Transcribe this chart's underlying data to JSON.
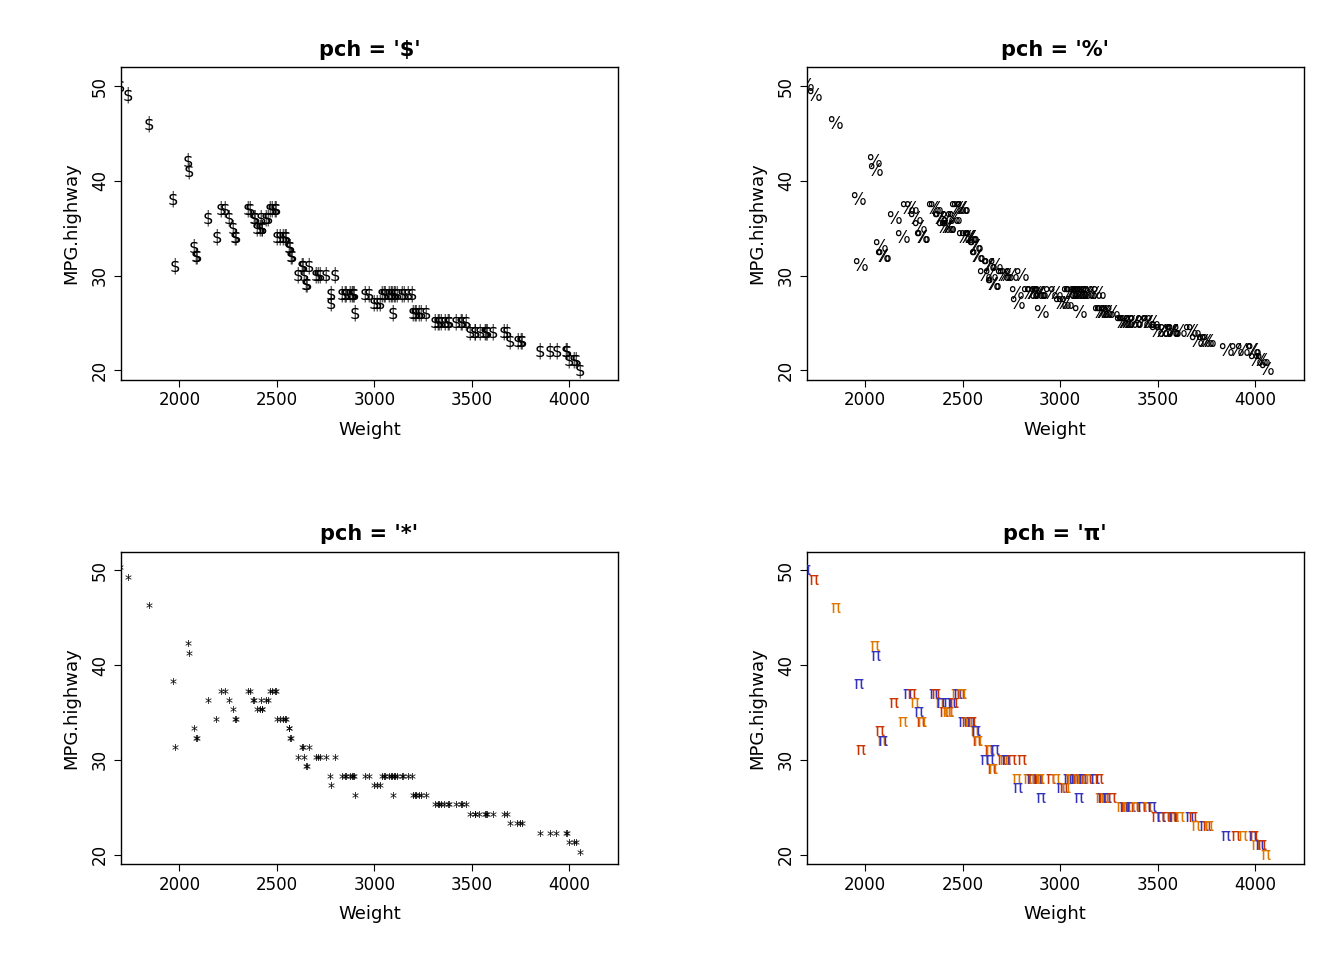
{
  "weight": [
    1695,
    1735,
    1845,
    1965,
    1975,
    2045,
    2050,
    2075,
    2085,
    2090,
    2145,
    2190,
    2215,
    2235,
    2255,
    2275,
    2285,
    2290,
    2350,
    2360,
    2380,
    2385,
    2400,
    2415,
    2420,
    2425,
    2425,
    2445,
    2455,
    2465,
    2475,
    2490,
    2495,
    2500,
    2515,
    2530,
    2540,
    2545,
    2560,
    2565,
    2570,
    2575,
    2610,
    2630,
    2635,
    2640,
    2650,
    2655,
    2665,
    2700,
    2710,
    2720,
    2750,
    2775,
    2780,
    2800,
    2835,
    2850,
    2855,
    2875,
    2885,
    2890,
    2895,
    2900,
    2950,
    2975,
    3000,
    3015,
    3030,
    3040,
    3050,
    3055,
    3075,
    3085,
    3090,
    3095,
    3100,
    3105,
    3115,
    3140,
    3150,
    3175,
    3195,
    3200,
    3210,
    3215,
    3230,
    3240,
    3265,
    3310,
    3325,
    3330,
    3340,
    3360,
    3380,
    3385,
    3420,
    3445,
    3450,
    3470,
    3490,
    3515,
    3515,
    3540,
    3570,
    3575,
    3580,
    3610,
    3665,
    3680,
    3695,
    3735,
    3750,
    3760,
    3850,
    3900,
    3935,
    3985,
    3990,
    4000,
    4025,
    4035,
    4055
  ],
  "mpg_highway": [
    50,
    49,
    46,
    38,
    31,
    42,
    41,
    33,
    32,
    32,
    36,
    34,
    37,
    37,
    36,
    35,
    34,
    34,
    37,
    37,
    36,
    36,
    35,
    35,
    36,
    35,
    35,
    36,
    36,
    37,
    37,
    37,
    37,
    34,
    34,
    34,
    34,
    34,
    33,
    33,
    32,
    32,
    30,
    31,
    31,
    30,
    29,
    29,
    31,
    30,
    30,
    30,
    30,
    28,
    27,
    30,
    28,
    28,
    28,
    28,
    28,
    28,
    28,
    26,
    28,
    28,
    27,
    27,
    27,
    28,
    28,
    28,
    28,
    28,
    28,
    26,
    28,
    28,
    28,
    28,
    28,
    28,
    28,
    26,
    26,
    26,
    26,
    26,
    26,
    25,
    25,
    25,
    25,
    25,
    25,
    25,
    25,
    25,
    25,
    25,
    24,
    24,
    24,
    24,
    24,
    24,
    24,
    24,
    24,
    24,
    23,
    23,
    23,
    23,
    22,
    22,
    22,
    22,
    22,
    21,
    21,
    21,
    20
  ],
  "titles": [
    "pch = '$'",
    "pch = '%'",
    "pch = '*'",
    "pch = 'π'"
  ],
  "xlabel": "Weight",
  "ylabel": "MPG.highway",
  "xlim": [
    1700,
    4250
  ],
  "ylim": [
    19,
    52
  ],
  "xticks": [
    2000,
    2500,
    3000,
    3500,
    4000
  ],
  "yticks": [
    20,
    30,
    40,
    50
  ],
  "background_color": "#ffffff",
  "title_fontsize": 15,
  "axis_label_fontsize": 13,
  "tick_fontsize": 12,
  "dollar_fontsize": 12,
  "percent_fontsize": 12,
  "star_fontsize": 10,
  "pi_fontsize": 12,
  "pi_colors": [
    "#3333bb",
    "#cc3300",
    "#dd7700"
  ]
}
